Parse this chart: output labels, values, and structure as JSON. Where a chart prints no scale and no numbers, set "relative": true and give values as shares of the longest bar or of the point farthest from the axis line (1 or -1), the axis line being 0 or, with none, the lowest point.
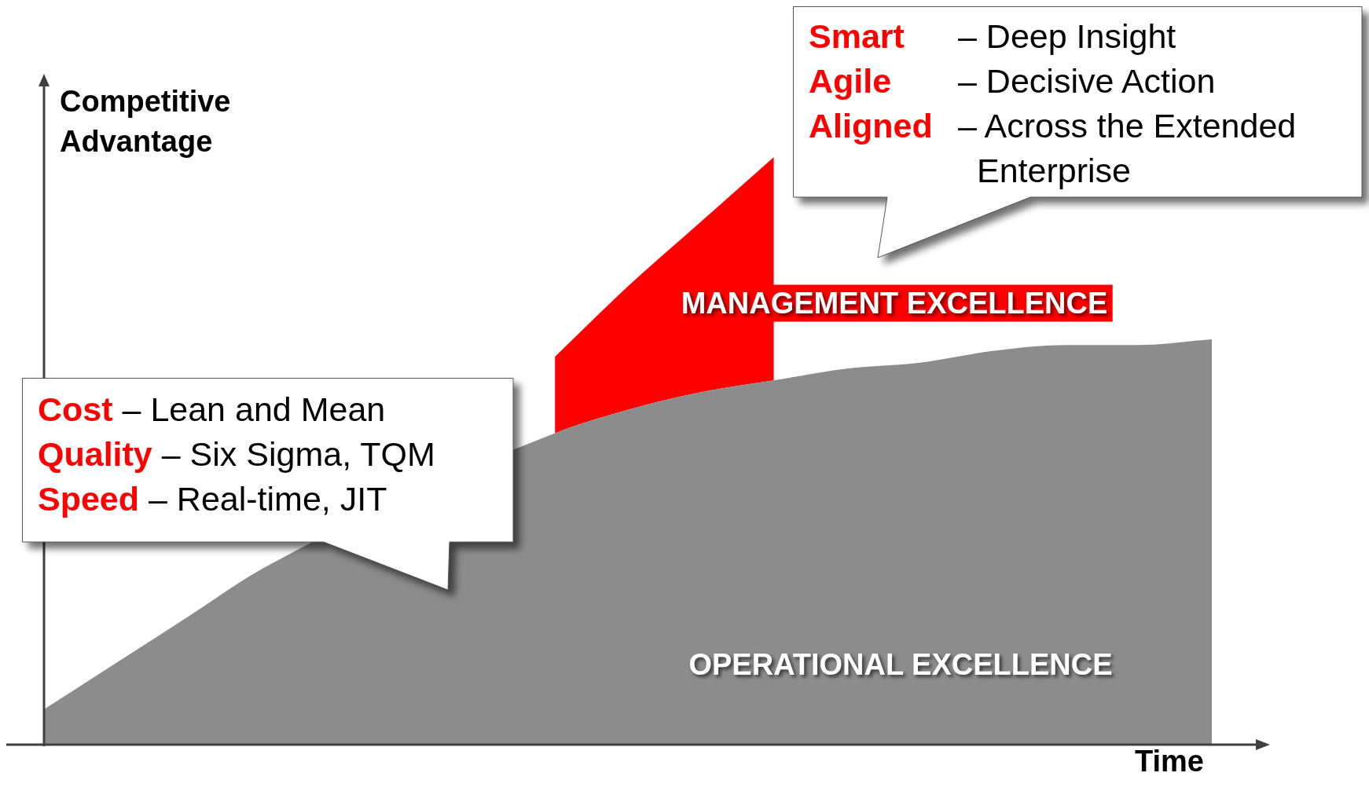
{
  "chart_data": {
    "type": "area",
    "stacked": true,
    "relative": true,
    "legend": false,
    "ylabel": "Competitive Advantage",
    "xlabel": "Time",
    "categories": [
      null,
      null,
      null,
      null,
      null,
      null,
      null,
      null,
      null,
      null,
      null,
      null,
      null,
      null,
      null,
      null,
      null
    ],
    "series": [
      {
        "name": "OPERATIONAL EXCELLENCE",
        "color": "#8c8c8c",
        "values": [
          0.06,
          0.14,
          0.22,
          0.3,
          null,
          null,
          null,
          0.53,
          0.57,
          0.6,
          0.62,
          0.64,
          0.65,
          0.67,
          0.68,
          0.68,
          0.69
        ]
      },
      {
        "name": "MANAGEMENT EXCELLENCE",
        "color": "#ff0000",
        "values": [
          null,
          null,
          null,
          null,
          null,
          null,
          null,
          0.13,
          0.21,
          0.29,
          0.38,
          null,
          null,
          null,
          null,
          null,
          null
        ]
      }
    ],
    "annotations": [
      "Cost – Lean and Mean",
      "Quality – Six Sigma, TQM",
      "Speed – Real-time, JIT",
      "Smart – Deep Insight",
      "Agile – Decisive Action",
      "Aligned – Across the Extended Enterprise"
    ]
  }
}
